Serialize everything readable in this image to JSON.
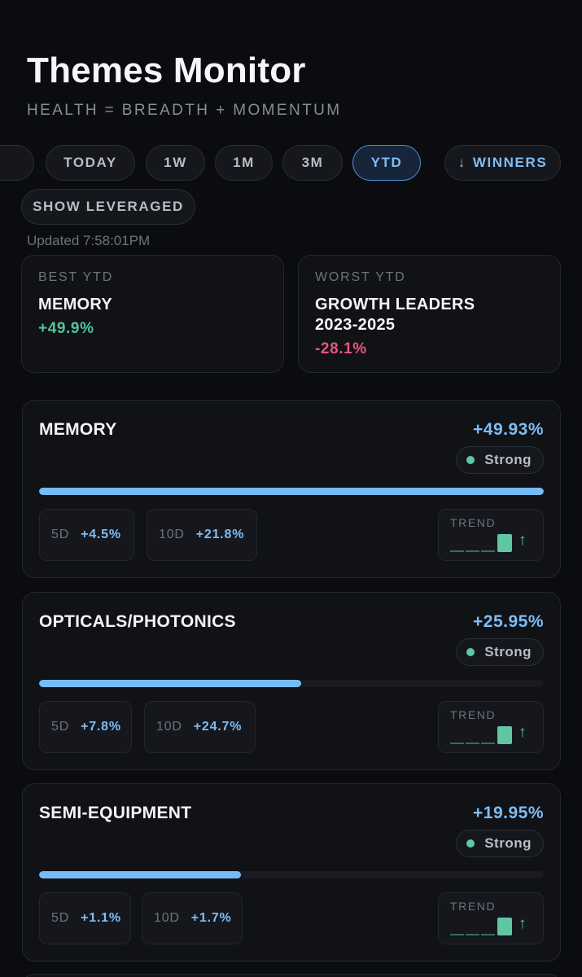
{
  "header": {
    "title": "Themes Monitor",
    "subtitle": "HEALTH = BREADTH + MOMENTUM"
  },
  "filters": {
    "periods": [
      {
        "label": "TODAY",
        "active": false
      },
      {
        "label": "1W",
        "active": false
      },
      {
        "label": "1M",
        "active": false
      },
      {
        "label": "3M",
        "active": false
      },
      {
        "label": "YTD",
        "active": true
      }
    ],
    "sort_icon": "arrow-down-icon",
    "sort_label": "WINNERS",
    "leveraged_label": "SHOW LEVERAGED"
  },
  "updated": "Updated 7:58:01PM",
  "summary": {
    "best": {
      "label": "BEST YTD",
      "name": "MEMORY",
      "value": "+49.9%"
    },
    "worst": {
      "label": "WORST YTD",
      "name": "GROWTH LEADERS 2023-2025",
      "value": "-28.1%"
    }
  },
  "themes": [
    {
      "name": "MEMORY",
      "pct": "+49.93%",
      "health": "Strong",
      "progress": 1.0,
      "d5_label": "5D",
      "d5": "+4.5%",
      "d10_label": "10D",
      "d10": "+21.8%",
      "trend_label": "TREND",
      "trend_icon": "arrow-up-icon"
    },
    {
      "name": "OPTICALS/PHOTONICS",
      "pct": "+25.95%",
      "health": "Strong",
      "progress": 0.52,
      "d5_label": "5D",
      "d5": "+7.8%",
      "d10_label": "10D",
      "d10": "+24.7%",
      "trend_label": "TREND",
      "trend_icon": "arrow-up-icon"
    },
    {
      "name": "SEMI-EQUIPMENT",
      "pct": "+19.95%",
      "health": "Strong",
      "progress": 0.4,
      "d5_label": "5D",
      "d5": "+1.1%",
      "d10_label": "10D",
      "d10": "+1.7%",
      "trend_label": "TREND",
      "trend_icon": "arrow-up-icon"
    }
  ],
  "colors": {
    "background": "#0b0c10",
    "accent_blue": "#7ebdf5",
    "positive_green": "#54c29a",
    "negative_red": "#e5577c"
  }
}
